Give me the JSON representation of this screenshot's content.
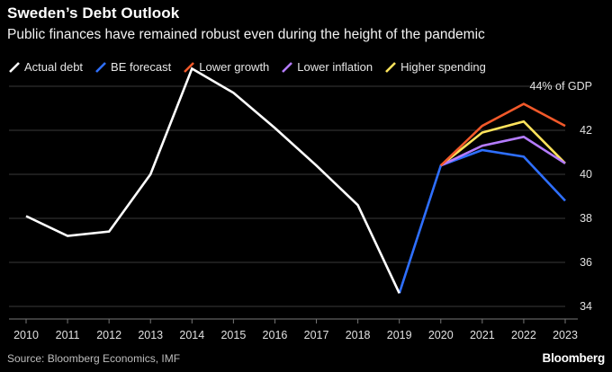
{
  "header": {
    "title": "Sweden’s Debt Outlook",
    "subtitle": "Public finances have remained robust even during the height of the pandemic"
  },
  "footer": {
    "source": "Source: Bloomberg Economics, IMF",
    "logo": "Bloomberg"
  },
  "colors": {
    "background": "#000000",
    "gridline": "#3a3a3a",
    "axis": "#777777"
  },
  "chart_data": {
    "type": "line",
    "title": "Sweden’s Debt Outlook",
    "subtitle": "Public finances have remained robust even during the height of the pandemic",
    "xlabel": "",
    "ylabel": "",
    "y_unit_label": "44% of GDP",
    "ylim": [
      34,
      44
    ],
    "y_ticks": [
      34,
      36,
      38,
      40,
      42
    ],
    "x_ticks": [
      2010,
      2011,
      2012,
      2013,
      2014,
      2015,
      2016,
      2017,
      2018,
      2019,
      2020,
      2021,
      2022,
      2023
    ],
    "grid": true,
    "legend_position": "top",
    "series": [
      {
        "name": "Actual debt",
        "color": "#ffffff",
        "x": [
          2010,
          2011,
          2012,
          2013,
          2014,
          2015,
          2016,
          2017,
          2018,
          2019
        ],
        "values": [
          38.1,
          37.2,
          37.4,
          40.0,
          44.8,
          43.7,
          42.1,
          40.4,
          38.6,
          34.6
        ]
      },
      {
        "name": "BE forecast",
        "color": "#2e6fff",
        "x": [
          2019,
          2020,
          2021,
          2022,
          2023
        ],
        "values": [
          34.6,
          40.4,
          41.1,
          40.8,
          38.8
        ]
      },
      {
        "name": "Lower growth",
        "color": "#f2592a",
        "x": [
          2020,
          2021,
          2022,
          2023
        ],
        "values": [
          40.4,
          42.2,
          43.2,
          42.2
        ]
      },
      {
        "name": "Lower inflation",
        "color": "#b57cff",
        "x": [
          2020,
          2021,
          2022,
          2023
        ],
        "values": [
          40.4,
          41.3,
          41.7,
          40.5
        ]
      },
      {
        "name": "Higher spending",
        "color": "#ffe45c",
        "x": [
          2020,
          2021,
          2022,
          2023
        ],
        "values": [
          40.4,
          41.9,
          42.4,
          40.5
        ]
      }
    ]
  }
}
